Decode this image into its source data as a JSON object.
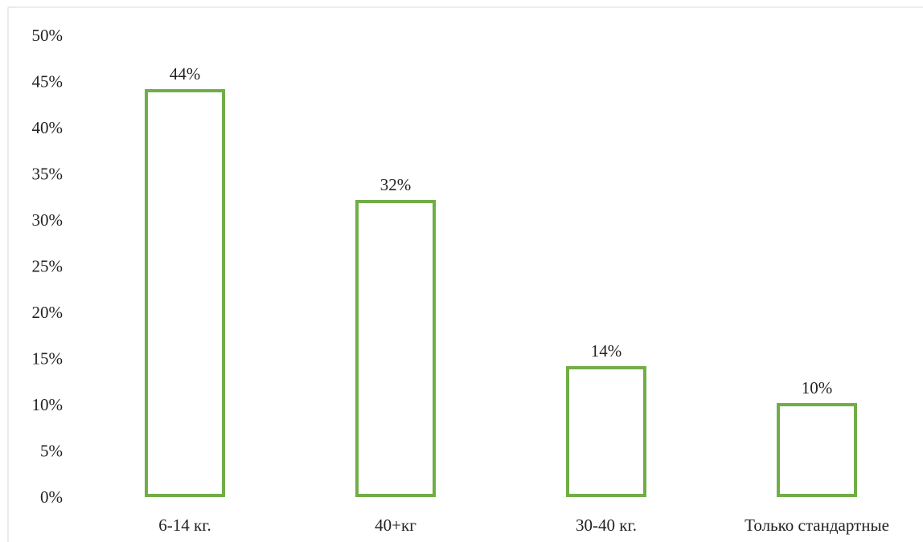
{
  "chart_data": {
    "type": "bar",
    "categories": [
      "6-14 кг.",
      "40+кг",
      "30-40 кг.",
      "Только стандартные"
    ],
    "values": [
      44,
      32,
      14,
      10
    ],
    "data_labels": [
      "44%",
      "32%",
      "14%",
      "10%"
    ],
    "title": "",
    "xlabel": "",
    "ylabel": "",
    "ylim": [
      0,
      50
    ],
    "yticks": [
      0,
      5,
      10,
      15,
      20,
      25,
      30,
      35,
      40,
      45,
      50
    ],
    "ytick_labels": [
      "0%",
      "5%",
      "10%",
      "15%",
      "20%",
      "25%",
      "30%",
      "35%",
      "40%",
      "45%",
      "50%"
    ],
    "grid": false,
    "legend": "none",
    "bar_style": "outline",
    "colors": {
      "bar_stroke": "#70ad47",
      "bar_fill": "#ffffff",
      "text": "#222222",
      "frame": "#d9d9d9"
    }
  }
}
